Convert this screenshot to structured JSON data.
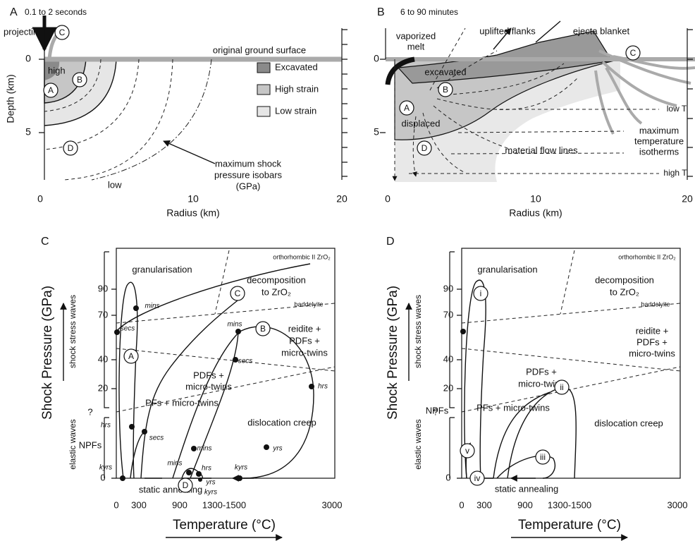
{
  "panel_a": {
    "label": "A",
    "subtitle": "0.1 to 2 seconds",
    "projectile": "projectile",
    "ground_surface": "original ground surface",
    "high": "high",
    "low": "low",
    "zones": [
      "C",
      "A",
      "B",
      "D"
    ],
    "legend": [
      "Excavated",
      "High strain",
      "Low strain"
    ],
    "isobars": [
      "maximum shock",
      "pressure isobars",
      "(GPa)"
    ],
    "x_title": "Radius (km)",
    "x_ticks": [
      "0",
      "10",
      "20"
    ],
    "y_title": "Depth (km)",
    "y_ticks": [
      "0",
      "5"
    ]
  },
  "panel_b": {
    "label": "B",
    "subtitle": "6 to 90 minutes",
    "vaporized_melt": [
      "vaporized",
      "melt"
    ],
    "uplifted_flanks": "uplifted flanks",
    "ejecta_blanket": "ejecta blanket",
    "excavated": "excavated",
    "displaced": "displaced",
    "zones": [
      "A",
      "B",
      "C",
      "D"
    ],
    "low_t": "low T",
    "isotherms": [
      "maximum",
      "temperature",
      "isotherms"
    ],
    "high_t": "high T",
    "flow_lines": "material flow lines",
    "x_title": "Radius (km)",
    "x_ticks": [
      "0",
      "10",
      "20"
    ],
    "y_ticks": [
      "0",
      "5"
    ]
  },
  "panel_c": {
    "label": "C",
    "y_title": "Shock Pressure (GPa)",
    "y_ticks": [
      "90",
      "70",
      "40",
      "20",
      "?",
      "0"
    ],
    "stress_waves": "shock stress waves",
    "elastic_waves": "elastic waves",
    "x_title": "Temperature (°C)",
    "x_ticks": [
      "0",
      "300",
      "900",
      "1300-1500",
      "3000"
    ],
    "regions": [
      "granularisation",
      "orthorhombic II ZrO₂",
      "decomposition",
      "to ZrO₂",
      "baddelyite",
      "reidite +",
      "PDFs +",
      "micro-twins",
      "PDFs +",
      "micro-twins",
      "PFs + micro-twins",
      "NPFs",
      "dislocation creep",
      "static annealing"
    ],
    "paths": [
      "C",
      "A",
      "B",
      "D"
    ],
    "times": [
      "mins",
      "secs",
      "mins",
      "secs",
      "hrs",
      "hrs",
      "secs",
      "mins",
      "yrs",
      "mins",
      "hrs",
      "yrs",
      "kyrs",
      "kyrs",
      "kyrs"
    ]
  },
  "panel_d": {
    "label": "D",
    "y_title": "Shock Pressure (GPa)",
    "y_ticks": [
      "90",
      "70",
      "40",
      "20",
      "?",
      "0"
    ],
    "stress_waves": "shock stress waves",
    "elastic_waves": "elastic waves",
    "x_title": "Temperature (°C)",
    "x_ticks": [
      "0",
      "300",
      "900",
      "1300-1500",
      "3000"
    ],
    "regions": [
      "granularisation",
      "orthorhombic II ZrO₂",
      "decomposition",
      "to ZrO₂",
      "baddelyite",
      "reidite +",
      "PDFs +",
      "micro-twins",
      "PDFs +",
      "micro-twins",
      "PFs + micro-twins",
      "NPFs",
      "dislocation creep",
      "static annealing"
    ],
    "paths": [
      "i",
      "ii",
      "iii",
      "iv",
      "v"
    ]
  }
}
